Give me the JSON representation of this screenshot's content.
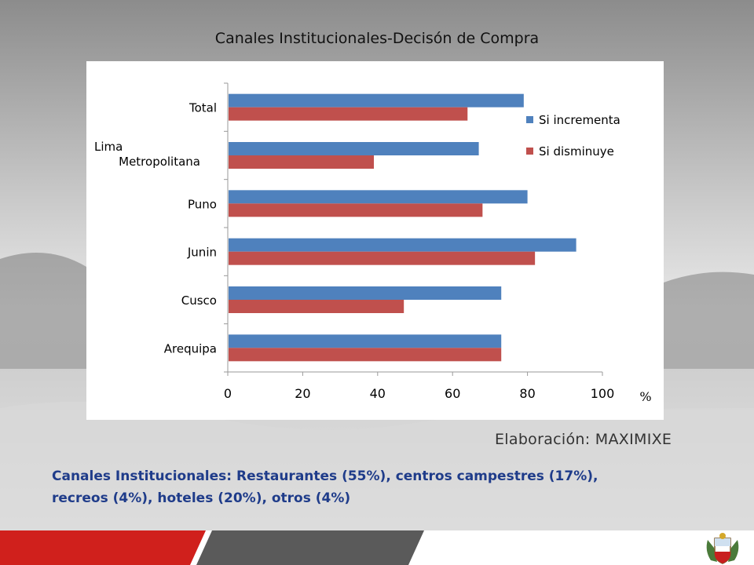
{
  "slide": {
    "title": "Canales Institucionales-Decisón de Compra",
    "credit": "Elaboración: MAXIMIXE",
    "footnote": "Canales Institucionales: Restaurantes (55%), centros campestres (17%), recreos (4%), hoteles (20%), otros (4%)"
  },
  "colors": {
    "series1": "#4f81bd",
    "series2": "#c0504d",
    "footer_red": "#d0201c",
    "footer_gray": "#5a5a5a"
  },
  "chart_data": {
    "type": "bar",
    "orientation": "horizontal",
    "categories": [
      "Total",
      "Lima Metropolitana",
      "Puno",
      "Junin",
      "Cusco",
      "Arequipa"
    ],
    "series": [
      {
        "name": "Si incrementa",
        "values": [
          79,
          67,
          80,
          93,
          73,
          73
        ]
      },
      {
        "name": "Si disminuye",
        "values": [
          64,
          39,
          68,
          82,
          47,
          73
        ]
      }
    ],
    "xlim": [
      0,
      100
    ],
    "xticks": [
      0,
      20,
      40,
      60,
      80,
      100
    ],
    "unit_label": "%",
    "legend": "right",
    "grid": false
  }
}
